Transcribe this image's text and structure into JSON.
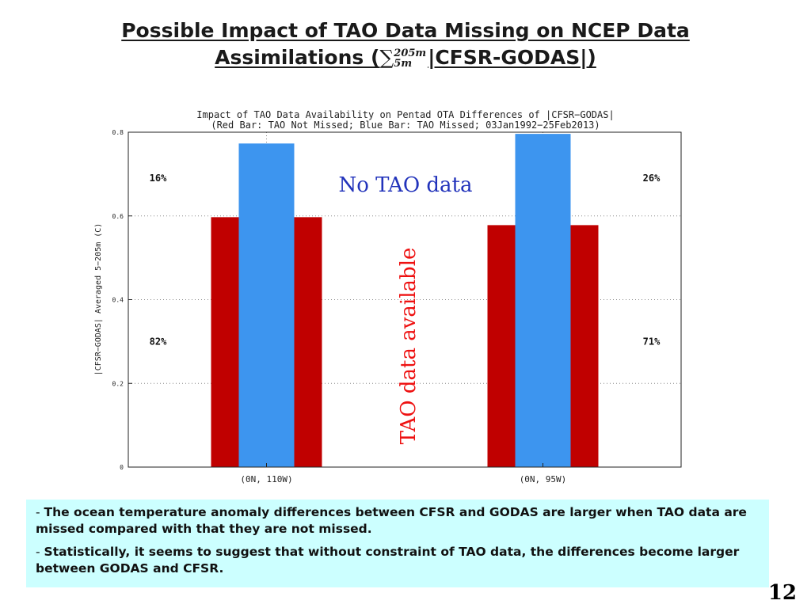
{
  "slide": {
    "title_line1": "Possible Impact of TAO Data Missing on NCEP Data",
    "title_line2_pre": "Assimilations (",
    "sum_symbol": "∑",
    "sum_upper": "205m",
    "sum_lower": "5m",
    "title_line2_post": "|CFSR-GODAS|)"
  },
  "chart_data": {
    "type": "bar",
    "title": "Impact of TAO Data Availability on Pentad OTA Differences of |CFSR−GODAS|",
    "subtitle": "(Red Bar: TAO Not Missed; Blue Bar: TAO Missed; 03Jan1992−25Feb2013)",
    "ylabel": "|CFSR−GODAS| Averaged 5−205m (C)",
    "xlabel": "",
    "ylim": [
      0,
      0.8
    ],
    "yticks": [
      {
        "value": 0,
        "label": "0"
      },
      {
        "value": 0.2,
        "label": "0.2"
      },
      {
        "value": 0.4,
        "label": "0.4"
      },
      {
        "value": 0.6,
        "label": "0.6"
      },
      {
        "value": 0.8,
        "label": "0.8"
      }
    ],
    "categories": [
      "(0N, 110W)",
      "(0N, 95W)"
    ],
    "series": [
      {
        "key": "not_missed",
        "color": "#c00000",
        "values": [
          0.597,
          0.578
        ]
      },
      {
        "key": "missed",
        "color": "#3d95ef",
        "values": [
          0.773,
          0.796
        ]
      }
    ],
    "annotations": [
      {
        "text": "16%",
        "category": 0,
        "side": "left",
        "y": 0.69
      },
      {
        "text": "82%",
        "category": 0,
        "side": "left",
        "y": 0.3
      },
      {
        "text": "26%",
        "category": 1,
        "side": "right",
        "y": 0.69
      },
      {
        "text": "71%",
        "category": 1,
        "side": "right",
        "y": 0.3
      }
    ],
    "grid": true,
    "legend": "none"
  },
  "overlay_labels": {
    "no_tao": "No TAO data",
    "tao_available": "TAO data available",
    "no_tao_color": "#2233bb",
    "tao_available_color": "#ee1111"
  },
  "notes": [
    {
      "dash": "- ",
      "text": "The ocean temperature anomaly differences between CFSR and GODAS are larger when TAO data are missed compared with that they are not missed."
    },
    {
      "dash": "- ",
      "text": "Statistically, it seems to suggest that without constraint of TAO data, the differences become larger between GODAS and CFSR."
    }
  ],
  "page_number": "12"
}
